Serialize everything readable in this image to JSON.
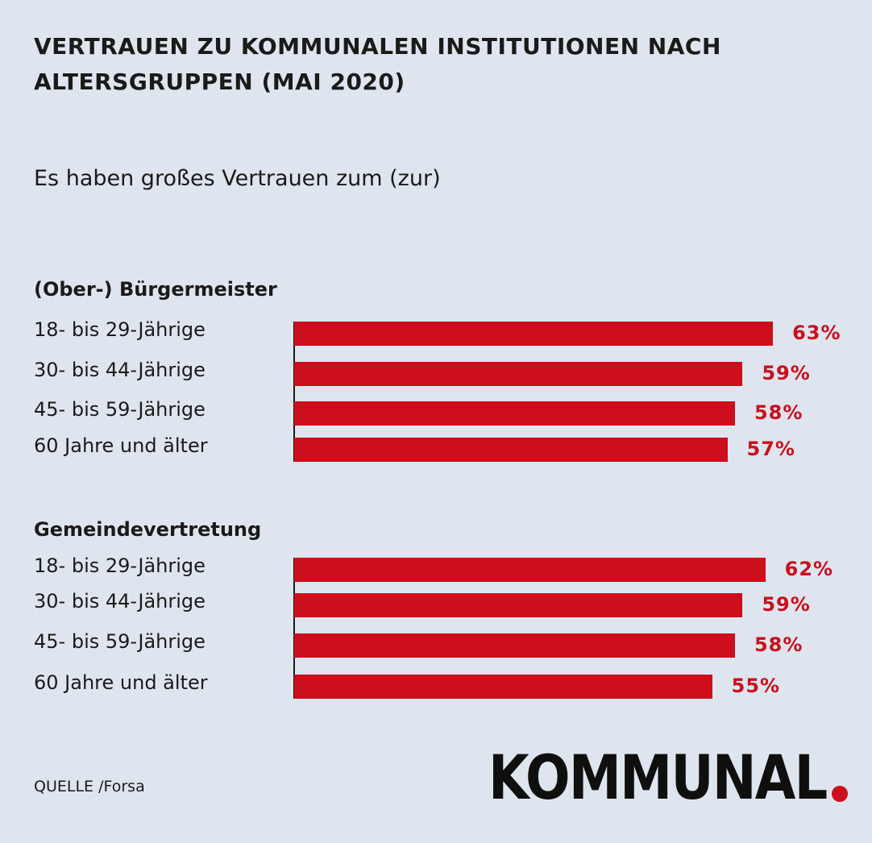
{
  "title_line1": "VERTRAUEN ZU KOMMUNALEN INSTITUTIONEN NACH",
  "title_line2": "ALTERSGRUPPEN (MAI 2020)",
  "subtitle": "Es haben großes Vertrauen zum (zur)",
  "source": "QUELLE /Forsa",
  "logo": "KOMMUNAL",
  "colors": {
    "background": "#dfe5ee",
    "bar": "#cc0e1d",
    "text": "#1a1a1a"
  },
  "chart_data": {
    "type": "bar",
    "orientation": "horizontal",
    "title": "VERTRAUEN ZU KOMMUNALEN INSTITUTIONEN NACH ALTERSGRUPPEN (MAI 2020)",
    "subtitle": "Es haben großes Vertrauen zum (zur)",
    "unit": "%",
    "groups": [
      {
        "name": "(Ober-) Bürgermeister",
        "categories": [
          "18- bis 29-Jährige",
          "30- bis 44-Jährige",
          "45- bis 59-Jährige",
          "60 Jahre und älter"
        ],
        "values": [
          63,
          59,
          58,
          57
        ],
        "labels": [
          "63%",
          "59%",
          "58%",
          "57%"
        ]
      },
      {
        "name": "Gemeindevertretung",
        "categories": [
          "18- bis 29-Jährige",
          "30- bis 44-Jährige",
          "45- bis 59-Jährige",
          "60 Jahre und älter"
        ],
        "values": [
          62,
          59,
          58,
          55
        ],
        "labels": [
          "62%",
          "59%",
          "58%",
          "55%"
        ]
      }
    ]
  }
}
